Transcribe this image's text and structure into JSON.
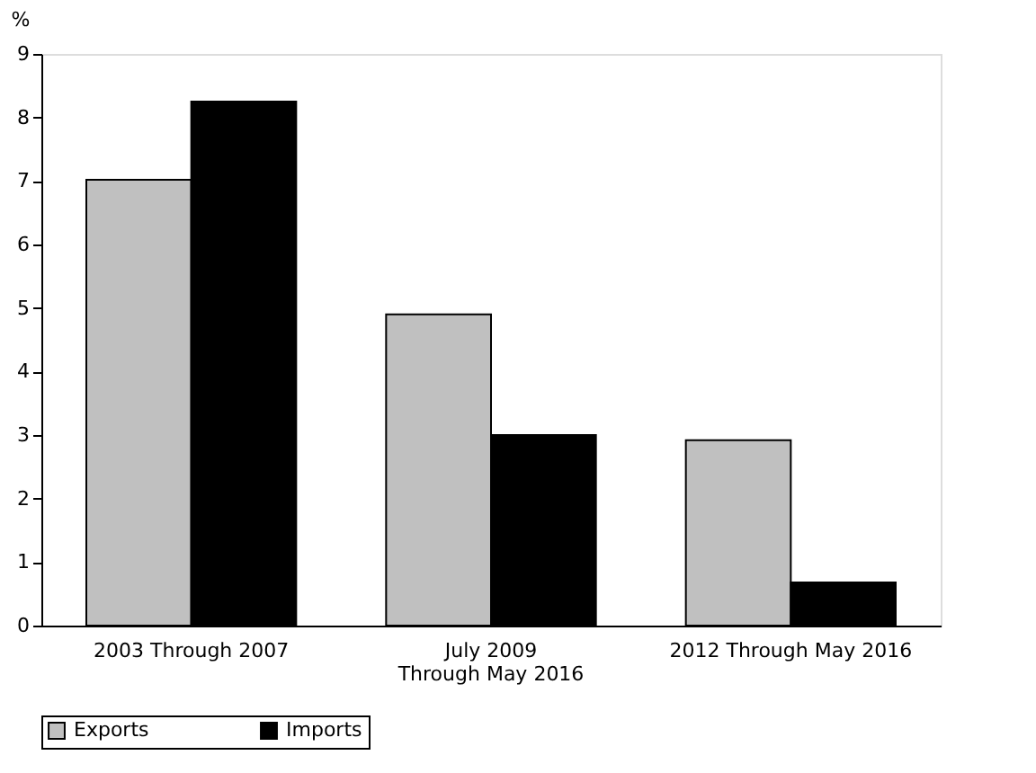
{
  "chart_data": {
    "type": "bar",
    "ylabel": "%",
    "categories": [
      "2003 Through 2007",
      "July 2009\nThrough May 2016",
      "2012 Through May 2016"
    ],
    "series": [
      {
        "name": "Exports",
        "color": "#c0c0c0",
        "values": [
          7.02,
          4.9,
          2.92
        ]
      },
      {
        "name": "Imports",
        "color": "#000000",
        "values": [
          8.25,
          3.0,
          0.68
        ]
      }
    ],
    "ylim": [
      0,
      9
    ],
    "yticks": [
      0,
      1,
      2,
      3,
      4,
      5,
      6,
      7,
      8,
      9
    ],
    "grid": false,
    "legend": "bottom"
  }
}
